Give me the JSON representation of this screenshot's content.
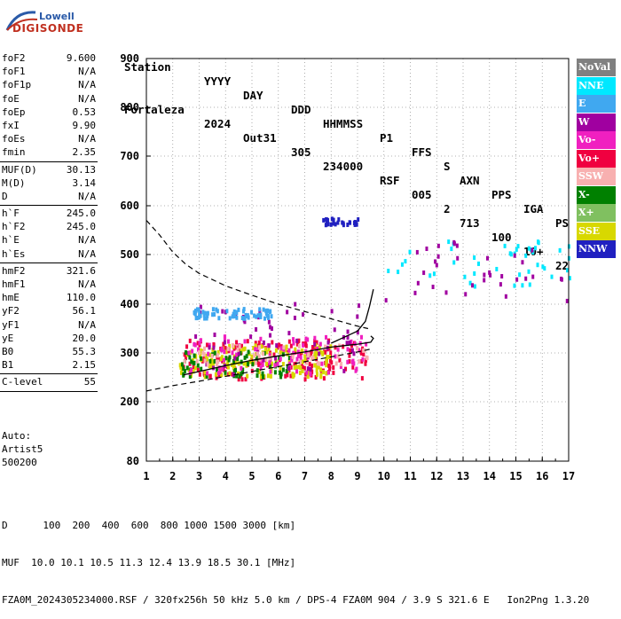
{
  "logo": {
    "line1": "Lowell",
    "line2": "DIGISONDE"
  },
  "header": {
    "labels": [
      "Station",
      "YYYY",
      "DAY",
      "DDD",
      "HHMMSS",
      "P1",
      "FFS",
      "S",
      "AXN",
      "PPS",
      "IGA",
      "PS"
    ],
    "values": [
      "Fortaleza",
      "2024",
      "Out31",
      "305",
      "234000",
      "RSF",
      "005",
      "2",
      "713",
      "100",
      "10+",
      "22"
    ]
  },
  "params": [
    [
      {
        "n": "foF2",
        "v": "9.600"
      },
      {
        "n": "foF1",
        "v": "N/A"
      },
      {
        "n": "foF1p",
        "v": "N/A"
      },
      {
        "n": "foE",
        "v": "N/A"
      },
      {
        "n": "foEp",
        "v": "0.53"
      },
      {
        "n": "fxI",
        "v": "9.90"
      },
      {
        "n": "foEs",
        "v": "N/A"
      },
      {
        "n": "fmin",
        "v": "2.35"
      }
    ],
    [
      {
        "n": "MUF(D)",
        "v": "30.13"
      },
      {
        "n": "M(D)",
        "v": "3.14"
      },
      {
        "n": "D",
        "v": "N/A"
      }
    ],
    [
      {
        "n": "h`F",
        "v": "245.0"
      },
      {
        "n": "h`F2",
        "v": "245.0"
      },
      {
        "n": "h`E",
        "v": "N/A"
      },
      {
        "n": "h`Es",
        "v": "N/A"
      }
    ],
    [
      {
        "n": "hmF2",
        "v": "321.6"
      },
      {
        "n": "hmF1",
        "v": "N/A"
      },
      {
        "n": "hmE",
        "v": "110.0"
      },
      {
        "n": "yF2",
        "v": "56.1"
      },
      {
        "n": "yF1",
        "v": "N/A"
      },
      {
        "n": "yE",
        "v": "20.0"
      },
      {
        "n": "B0",
        "v": "55.3"
      },
      {
        "n": "B1",
        "v": "2.15"
      }
    ],
    [
      {
        "n": "C-level",
        "v": "55"
      }
    ]
  ],
  "auto": {
    "line1": "Auto:",
    "line2": "Artist5",
    "line3": "500200"
  },
  "legend": [
    {
      "label": "NoVal",
      "color": "#808080"
    },
    {
      "label": "NNE",
      "color": "#00e8ff"
    },
    {
      "label": "E",
      "color": "#40a8f0"
    },
    {
      "label": "W",
      "color": "#a000a0"
    },
    {
      "label": "Vo-",
      "color": "#f020c0"
    },
    {
      "label": "Vo+",
      "color": "#f00040"
    },
    {
      "label": "SSW",
      "color": "#f8b0b0"
    },
    {
      "label": "X-",
      "color": "#008000"
    },
    {
      "label": "X+",
      "color": "#80c060"
    },
    {
      "label": "SSE",
      "color": "#d8d800"
    },
    {
      "label": "NNW",
      "color": "#2020c0"
    }
  ],
  "footer": {
    "line1": "D      100  200  400  600  800 1000 1500 3000 [km]",
    "line2": "MUF  10.0 10.1 10.5 11.3 12.4 13.9 18.5 30.1 [MHz]",
    "line3": "FZA0M_2024305234000.RSF / 320fx256h 50 kHz 5.0 km / DPS-4 FZA0M 904 / 3.9 S 321.6 E   Ion2Png 1.3.20"
  },
  "chart_data": {
    "type": "scatter",
    "xlim": [
      1,
      17
    ],
    "ylim": [
      80,
      900
    ],
    "x_ticks": [
      "1",
      "2",
      "3",
      "4",
      "5",
      "6",
      "7",
      "8",
      "9",
      "10",
      "11",
      "12",
      "13",
      "14",
      "15",
      "16",
      "17"
    ],
    "y_ticks": [
      {
        "v": 80,
        "label": "80"
      },
      {
        "v": 200,
        "label": "200"
      },
      {
        "v": 300,
        "label": "300"
      },
      {
        "v": 400,
        "label": "400"
      },
      {
        "v": 500,
        "label": "500"
      },
      {
        "v": 600,
        "label": "600"
      },
      {
        "v": 700,
        "label": "700"
      },
      {
        "v": 800,
        "label": "800"
      },
      {
        "v": 900,
        "label": "900"
      }
    ],
    "grid": true,
    "curves": {
      "dashed_upper": [
        [
          1.0,
          570
        ],
        [
          1.5,
          540
        ],
        [
          2.0,
          505
        ],
        [
          2.5,
          480
        ],
        [
          3.0,
          462
        ],
        [
          4.0,
          437
        ],
        [
          5.0,
          418
        ],
        [
          6.0,
          400
        ],
        [
          7.0,
          385
        ],
        [
          8.0,
          370
        ],
        [
          9.0,
          355
        ],
        [
          9.4,
          350
        ]
      ],
      "dashed_lower": [
        [
          1.0,
          222
        ],
        [
          2.0,
          233
        ],
        [
          3.0,
          242
        ],
        [
          4.0,
          252
        ],
        [
          5.0,
          262
        ],
        [
          6.0,
          272
        ],
        [
          7.0,
          282
        ],
        [
          8.0,
          292
        ],
        [
          9.0,
          302
        ],
        [
          9.5,
          308
        ]
      ],
      "solid_lower": [
        [
          2.4,
          255
        ],
        [
          3.0,
          262
        ],
        [
          4.0,
          274
        ],
        [
          5.0,
          285
        ],
        [
          6.0,
          294
        ],
        [
          7.0,
          302
        ],
        [
          8.0,
          312
        ],
        [
          9.0,
          318
        ],
        [
          9.5,
          322
        ],
        [
          9.6,
          330
        ],
        [
          9.5,
          335
        ]
      ],
      "solid_upper": [
        [
          8.0,
          320
        ],
        [
          8.6,
          335
        ],
        [
          9.0,
          345
        ],
        [
          9.3,
          365
        ],
        [
          9.45,
          395
        ],
        [
          9.6,
          430
        ]
      ]
    },
    "clusters": [
      {
        "direction": "Vo+",
        "x": [
          2.3,
          9.3
        ],
        "y": [
          250,
          330
        ],
        "count": 180
      },
      {
        "direction": "SSE",
        "x": [
          2.2,
          8.0
        ],
        "y": [
          255,
          320
        ],
        "count": 160
      },
      {
        "direction": "X-",
        "x": [
          2.3,
          6.5
        ],
        "y": [
          255,
          310
        ],
        "count": 70
      },
      {
        "direction": "Vo-",
        "x": [
          2.5,
          9.3
        ],
        "y": [
          260,
          340
        ],
        "count": 90
      },
      {
        "direction": "W",
        "x": [
          2.8,
          9.2
        ],
        "y": [
          260,
          410
        ],
        "count": 60
      },
      {
        "direction": "E",
        "x": [
          2.7,
          5.8
        ],
        "y": [
          375,
          395
        ],
        "count": 70
      },
      {
        "direction": "SSW",
        "x": [
          2.3,
          9.4
        ],
        "y": [
          280,
          320
        ],
        "count": 50
      },
      {
        "direction": "NNE",
        "x": [
          10,
          17
        ],
        "y": [
          440,
          540
        ],
        "count": 45
      },
      {
        "direction": "W",
        "x": [
          10,
          17
        ],
        "y": [
          410,
          540
        ],
        "count": 35
      },
      {
        "direction": "NNW",
        "x": [
          7.6,
          9.0
        ],
        "y": [
          565,
          578
        ],
        "count": 30
      }
    ]
  }
}
